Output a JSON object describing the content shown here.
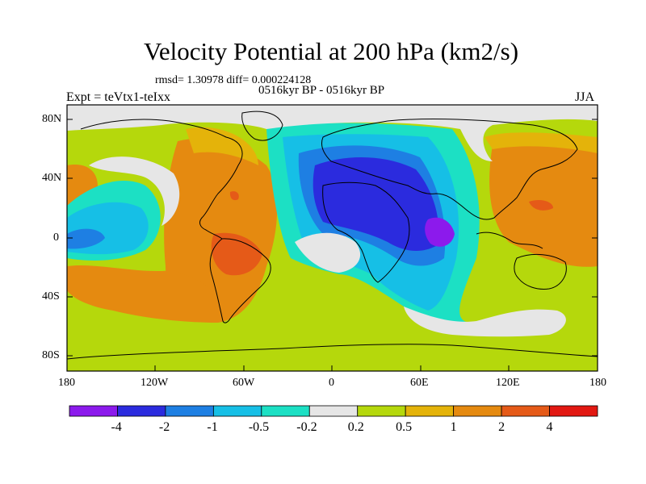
{
  "header": {
    "title": "Velocity Potential at 200 hPa (km2/s)",
    "stats": "rmsd= 1.30978 diff= 0.000224128",
    "subtitle": "0516kyr BP - 0516kyr BP",
    "experiment": "Expt = teVtx1-teIxx",
    "season": "JJA"
  },
  "axes": {
    "lat_labels": [
      "80N",
      "40N",
      "0",
      "40S",
      "80S"
    ],
    "lon_labels": [
      "180",
      "120W",
      "60W",
      "0",
      "60E",
      "120E",
      "180"
    ]
  },
  "colorbar": {
    "colors": [
      "#8c1aec",
      "#2b2bde",
      "#1e7fe3",
      "#16bfe6",
      "#1ce0c4",
      "#e6e6e6",
      "#b5d80c",
      "#e4b30a",
      "#e58a10",
      "#e55a18",
      "#e21812"
    ],
    "labels": [
      "-4",
      "-2",
      "-1",
      "-0.5",
      "-0.2",
      "0.2",
      "0.5",
      "1",
      "2",
      "4"
    ]
  }
}
